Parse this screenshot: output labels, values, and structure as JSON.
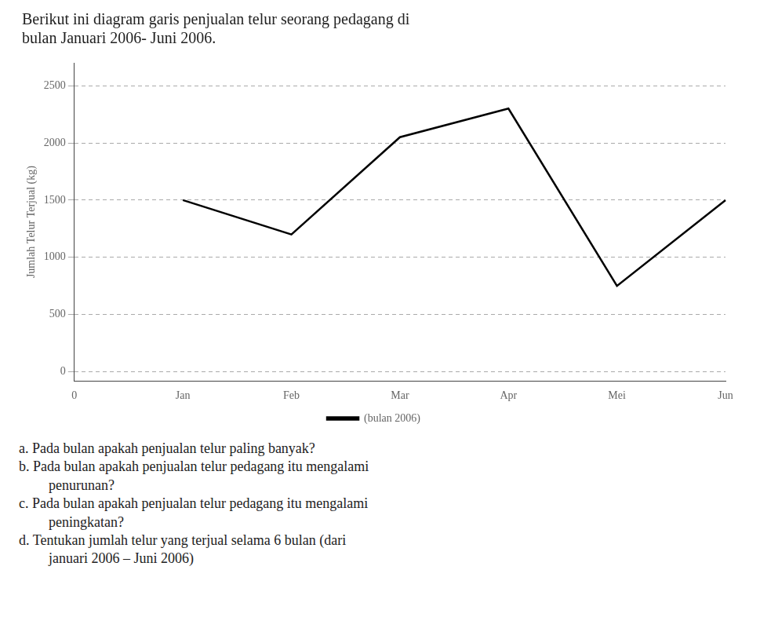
{
  "chart_data": {
    "type": "line",
    "title": "Berikut ini diagram garis penjualan telur seorang pedagang di\nbulan Januari 2006- Juni 2006.",
    "y_label": "Jumlah Telur Terjual (kg)",
    "categories": [
      "0",
      "Jan",
      "Feb",
      "Mar",
      "Apr",
      "Mei",
      "Jun"
    ],
    "series": [
      {
        "name": "(bulan 2006)",
        "color": "#000000",
        "values": [
          null,
          1500,
          1200,
          2050,
          2300,
          750,
          1500
        ]
      }
    ],
    "ylim": [
      -80,
      2700
    ],
    "yticks": [
      0,
      500,
      1000,
      1500,
      2000,
      2500
    ],
    "grid": true,
    "legend": "bottom",
    "annotations": [
      "a. Pada bulan apakah penjualan telur paling banyak?",
      "b. Pada bulan apakah penjualan telur pedagang itu mengalami\npenurunan?",
      "c. Pada bulan apakah penjualan telur pedagang itu mengalami\npeningkatan?",
      "d. Tentukan jumlah telur yang terjual selama 6 bulan (dari\njanuari 2006 – Juni 2006)"
    ]
  }
}
